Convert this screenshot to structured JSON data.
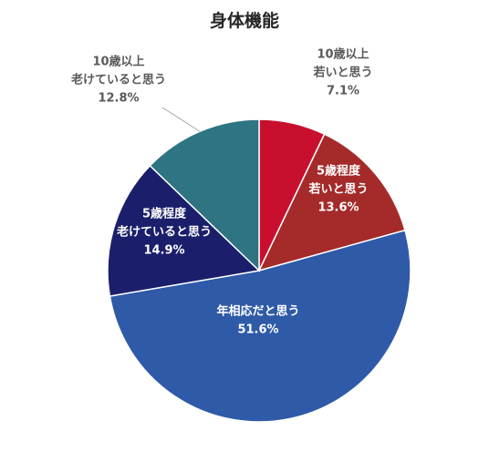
{
  "chart_data": {
    "type": "pie",
    "title": "身体機能",
    "start_angle_deg": 0,
    "direction": "clockwise",
    "slices": [
      {
        "label_lines": [
          "10歳以上",
          "若いと思う"
        ],
        "value": 7.1,
        "value_label": "7.1%",
        "color": "#C8102E",
        "label_placement": "outside",
        "label_color": "#595959"
      },
      {
        "label_lines": [
          "5歳程度",
          "若いと思う"
        ],
        "value": 13.6,
        "value_label": "13.6%",
        "color": "#A52A2A",
        "label_placement": "inside",
        "label_color": "#ffffff"
      },
      {
        "label_lines": [
          "年相応だと思う"
        ],
        "value": 51.6,
        "value_label": "51.6%",
        "color": "#2E5AA8",
        "label_placement": "inside",
        "label_color": "#ffffff"
      },
      {
        "label_lines": [
          "5歳程度",
          "老けていると思う"
        ],
        "value": 14.9,
        "value_label": "14.9%",
        "color": "#1B1F6B",
        "label_placement": "inside",
        "label_color": "#ffffff"
      },
      {
        "label_lines": [
          "10歳以上",
          "老けていると思う"
        ],
        "value": 12.8,
        "value_label": "12.8%",
        "color": "#2E7482",
        "label_placement": "outside",
        "label_color": "#595959"
      }
    ]
  }
}
